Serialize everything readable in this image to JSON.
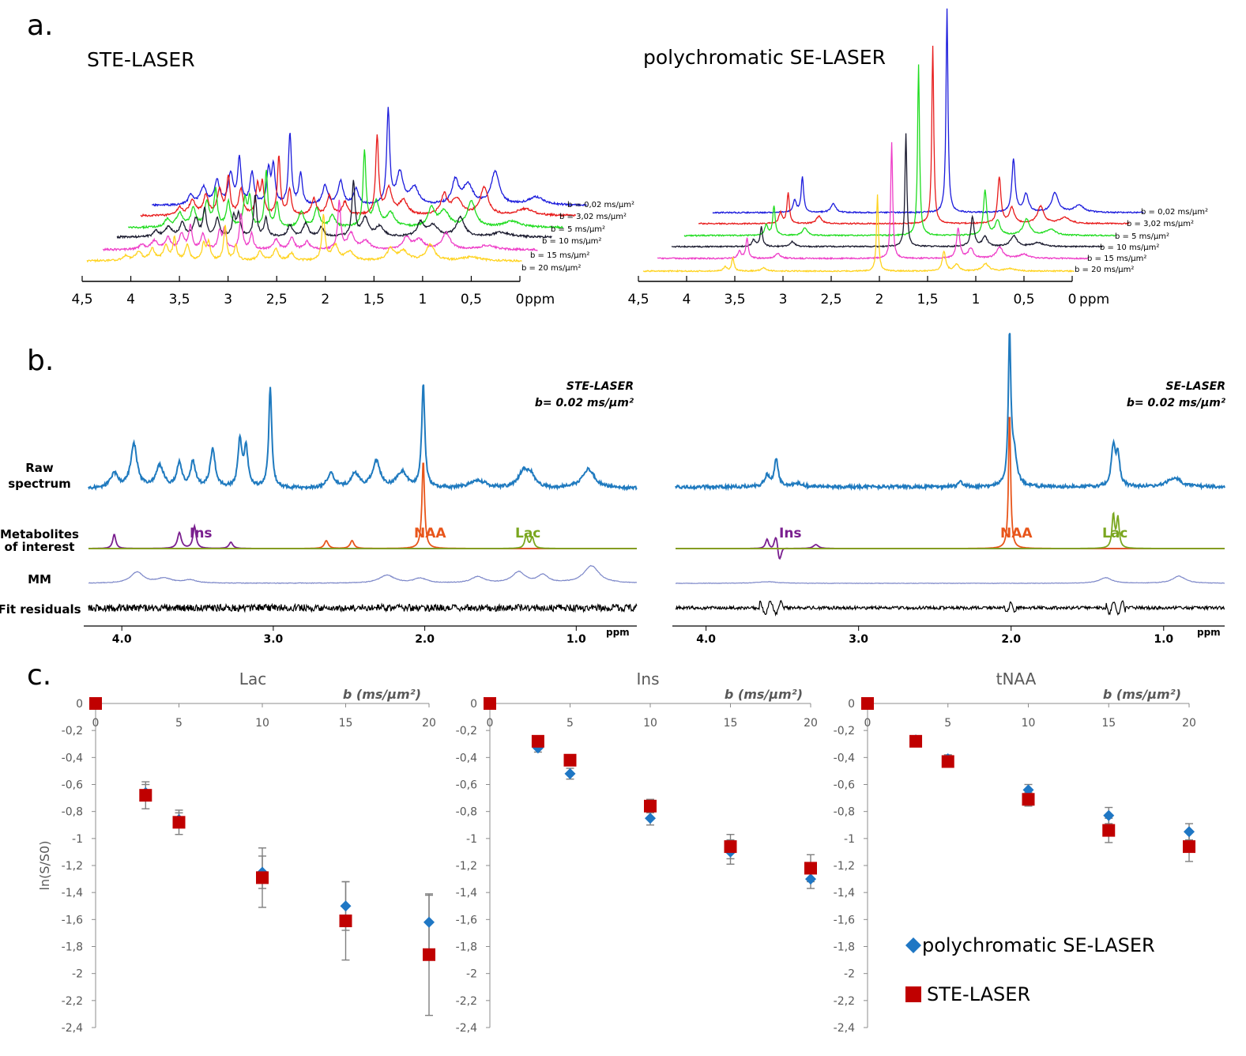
{
  "panel_labels": {
    "a": "a.",
    "b": "b.",
    "c": "c."
  },
  "axis_unit": "ppm",
  "colors": {
    "blue": "#1b1bdc",
    "red": "#e81b1b",
    "green": "#1fdc1f",
    "black": "#1a1a2e",
    "magenta": "#ee3ec8",
    "yellow": "#ffd31f",
    "raw": "#1f7abf",
    "naa": "#e8551a",
    "ins": "#7a1f8f",
    "lac": "#7aa61f",
    "mm": "#7b86c8",
    "marker_red": "#c00000",
    "marker_blue": "#1f77c4"
  },
  "panel_a": {
    "left": {
      "title": "STE-LASER",
      "ticks": [
        "4,5",
        "4",
        "3,5",
        "3",
        "2,5",
        "2",
        "1,5",
        "1",
        "0,5",
        "0"
      ],
      "legend": [
        "b = 0,02 ms/µm²",
        "b = 3,02 ms/µm²",
        "b = 5 ms/µm²",
        "b = 10 ms/µm²",
        "b = 15 ms/µm²",
        "b = 20 ms/µm²"
      ]
    },
    "right": {
      "title": "polychromatic SE-LASER",
      "ticks": [
        "4,5",
        "4",
        "3,5",
        "3",
        "2,5",
        "2",
        "1,5",
        "1",
        "0,5",
        "0"
      ],
      "legend": [
        "b = 0,02 ms/µm²",
        "b = 3,02 ms/µm²",
        "b = 5 ms/µm²",
        "b = 10 ms/µm²",
        "b = 15 ms/µm²",
        "b = 20 ms/µm²"
      ]
    }
  },
  "panel_b": {
    "row_labels": {
      "raw1": "Raw",
      "raw2": "spectrum",
      "met1": "Metabolites",
      "met2": "of interest",
      "mm": "MM",
      "fit": "Fit residuals"
    },
    "left": {
      "title1": "STE-LASER",
      "title2": "b= 0.02 ms/µm²"
    },
    "right": {
      "title1": "SE-LASER",
      "title2": "b= 0.02 ms/µm²"
    },
    "metabolites": {
      "ins": "Ins",
      "naa": "NAA",
      "lac": "Lac"
    },
    "ticks": [
      "4.0",
      "3.0",
      "2.0",
      "1.0"
    ]
  },
  "chart_data": [
    {
      "type": "scatter",
      "title": "Lac",
      "xlabel_bold": "b",
      "xlabel_unit": "(ms/µm²)",
      "ylabel": "ln(S/S0)",
      "xlim": [
        0,
        20
      ],
      "ylim": [
        -2.4,
        0
      ],
      "xticks": [
        "0",
        "5",
        "10",
        "15",
        "20"
      ],
      "yticks": [
        "0",
        "-0,2",
        "-0,4",
        "-0,6",
        "-0,8",
        "-1",
        "-1,2",
        "-1,4",
        "-1,6",
        "-1,8",
        "-2",
        "-2,2",
        "-2,4"
      ],
      "series": [
        {
          "name": "polychromatic SE-LASER",
          "x": [
            0,
            3,
            5,
            10,
            15,
            20
          ],
          "y": [
            0,
            -0.66,
            -0.86,
            -1.25,
            -1.5,
            -1.62
          ],
          "err": [
            0,
            0.06,
            0.05,
            0.12,
            0.18,
            0.2
          ]
        },
        {
          "name": "STE-LASER",
          "x": [
            0,
            3,
            5,
            10,
            15,
            20
          ],
          "y": [
            0,
            -0.68,
            -0.88,
            -1.29,
            -1.61,
            -1.86
          ],
          "err": [
            0,
            0.1,
            0.09,
            0.22,
            0.29,
            0.45
          ]
        }
      ]
    },
    {
      "type": "scatter",
      "title": "Ins",
      "xlabel_bold": "b",
      "xlabel_unit": "(ms/µm²)",
      "xlim": [
        0,
        20
      ],
      "ylim": [
        -2.4,
        0
      ],
      "xticks": [
        "0",
        "5",
        "10",
        "15",
        "20"
      ],
      "yticks": [
        "0",
        "-0,2",
        "-0,4",
        "-0,6",
        "-0,8",
        "-1",
        "-1,2",
        "-1,4",
        "-1,6",
        "-1,8",
        "-2",
        "-2,2",
        "-2,4"
      ],
      "series": [
        {
          "name": "polychromatic SE-LASER",
          "x": [
            0,
            3,
            5,
            10,
            15,
            20
          ],
          "y": [
            0,
            -0.33,
            -0.52,
            -0.85,
            -1.1,
            -1.3
          ],
          "err": [
            0,
            0.03,
            0.04,
            0.05,
            0.09,
            0.07
          ]
        },
        {
          "name": "STE-LASER",
          "x": [
            0,
            3,
            5,
            10,
            15,
            20
          ],
          "y": [
            0,
            -0.28,
            -0.42,
            -0.76,
            -1.06,
            -1.22
          ],
          "err": [
            0,
            0.02,
            0.03,
            0.05,
            0.09,
            0.1
          ]
        }
      ]
    },
    {
      "type": "scatter",
      "title": "tNAA",
      "xlabel_bold": "b",
      "xlabel_unit": "(ms/µm²)",
      "xlim": [
        0,
        20
      ],
      "ylim": [
        -2.4,
        0
      ],
      "xticks": [
        "0",
        "5",
        "10",
        "15",
        "20"
      ],
      "yticks": [
        "0",
        "-0,2",
        "-0,4",
        "-0,6",
        "-0,8",
        "-1",
        "-1,2",
        "-1,4",
        "-1,6",
        "-1,8",
        "-2",
        "-2,2",
        "-2,4"
      ],
      "series": [
        {
          "name": "polychromatic SE-LASER",
          "x": [
            0,
            3,
            5,
            10,
            15,
            20
          ],
          "y": [
            0,
            -0.27,
            -0.41,
            -0.64,
            -0.83,
            -0.95
          ],
          "err": [
            0,
            0.02,
            0.03,
            0.04,
            0.06,
            0.06
          ]
        },
        {
          "name": "STE-LASER",
          "x": [
            0,
            3,
            5,
            10,
            15,
            20
          ],
          "y": [
            0,
            -0.28,
            -0.43,
            -0.71,
            -0.94,
            -1.06
          ],
          "err": [
            0,
            0.02,
            0.03,
            0.05,
            0.09,
            0.11
          ]
        }
      ],
      "legend": [
        "polychromatic SE-LASER",
        "STE-LASER"
      ]
    }
  ]
}
